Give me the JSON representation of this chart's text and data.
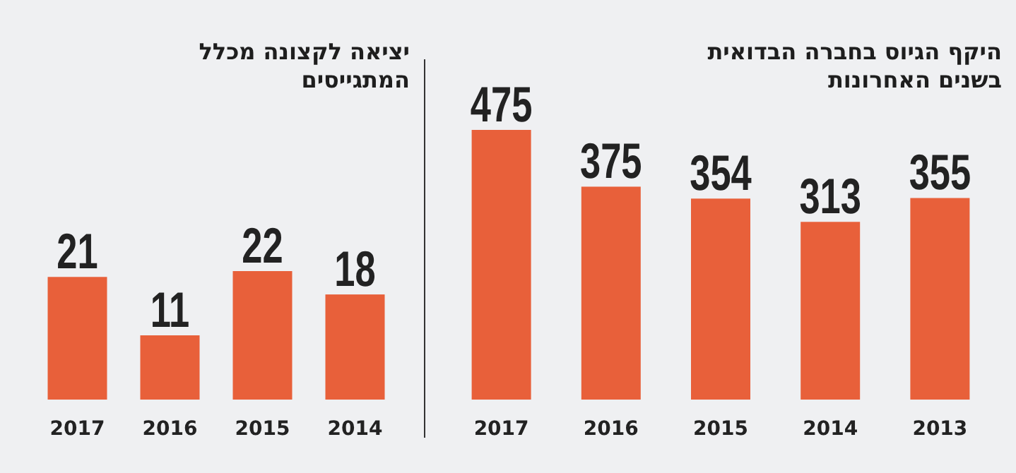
{
  "chart_data": [
    {
      "type": "bar",
      "title": "היקף הגיוס בחברה הבדואית בשנים האחרונות",
      "categories": [
        "2017",
        "2016",
        "2015",
        "2014",
        "2013"
      ],
      "values": [
        475,
        375,
        354,
        313,
        355
      ],
      "color": "#e8603a",
      "data_labels": true
    },
    {
      "type": "bar",
      "title": "יציאה לקצונה מכלל המתגייסים",
      "categories": [
        "2017",
        "2016",
        "2015",
        "2014"
      ],
      "values": [
        21,
        11,
        22,
        18
      ],
      "color": "#e8603a",
      "data_labels": true
    }
  ]
}
